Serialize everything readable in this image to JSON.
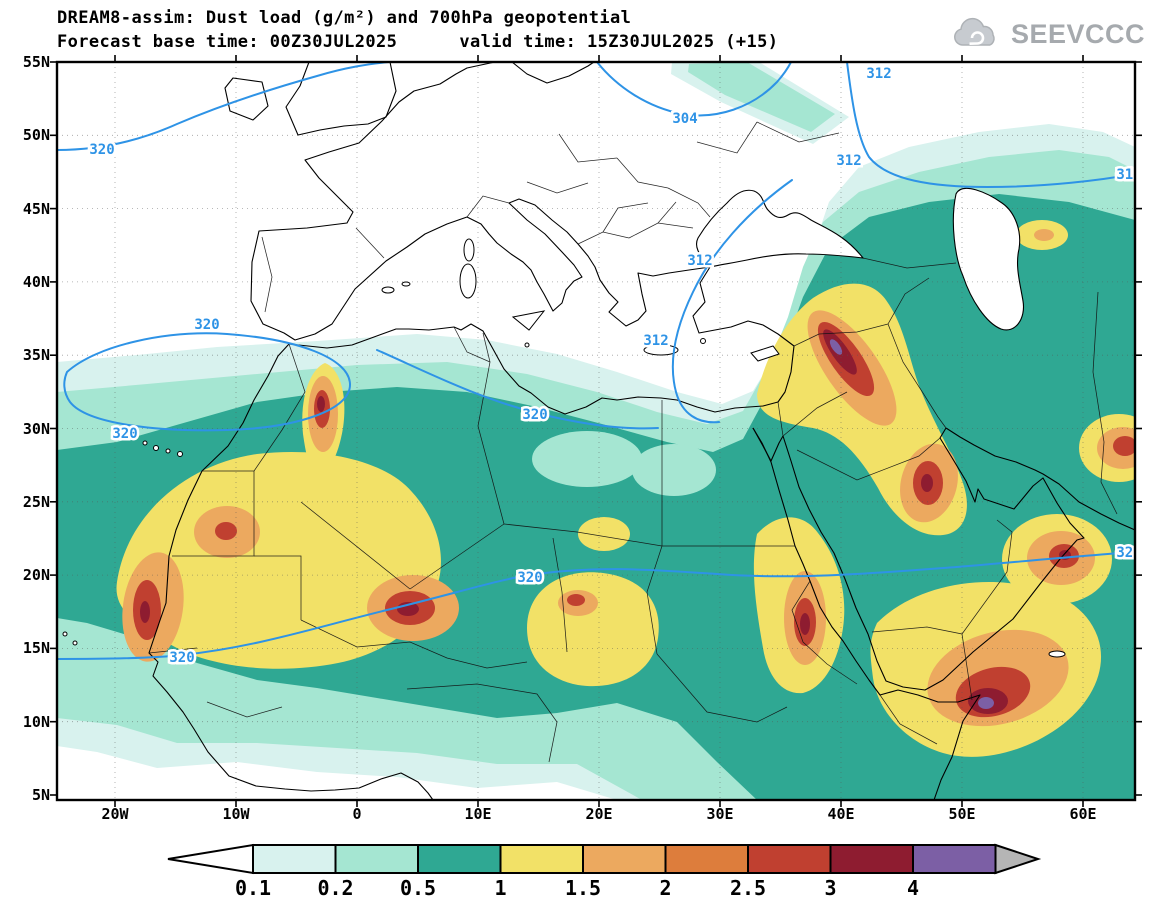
{
  "header": {
    "title_line1": "DREAM8-assim: Dust load (g/m²) and 700hPa geopotential",
    "forecast_base": "Forecast base time: 00Z30JUL2025",
    "valid_time": "valid time: 15Z30JUL2025 (+15)",
    "logo_text": "SEEVCCC"
  },
  "chart_data": {
    "type": "heatmap",
    "title": "DREAM8-assim: Dust load (g/m²) and 700hPa geopotential",
    "subtitle": "Forecast base time: 00Z30JUL2025  valid time: 15Z30JUL2025 (+15)",
    "extent": {
      "lon_min": -25,
      "lon_max": 64,
      "lat_min": 4.7,
      "lat_max": 55
    },
    "grid": "dotted, every 5 degrees",
    "y_axis": {
      "tick_labels": [
        "55N",
        "50N",
        "45N",
        "40N",
        "35N",
        "30N",
        "25N",
        "20N",
        "15N",
        "10N",
        "5N"
      ]
    },
    "x_axis": {
      "tick_labels": [
        "20W",
        "10W",
        "0",
        "10E",
        "20E",
        "30E",
        "40E",
        "50E",
        "60E"
      ]
    },
    "colorbar": {
      "units": "g/m²",
      "levels": [
        0.1,
        0.2,
        0.5,
        1,
        1.5,
        2,
        2.5,
        3,
        4
      ],
      "tick_labels": [
        "0.1",
        "0.2",
        "0.5",
        "1",
        "1.5",
        "2",
        "2.5",
        "3",
        "4"
      ],
      "segment_colors": [
        "#d8f2ee",
        "#a5e6d2",
        "#2fa893",
        "#f2e167",
        "#eca95f",
        "#dd7d3c",
        "#c04030",
        "#8e1c30",
        "#7c5fa5"
      ],
      "underflow_color": "#ffffff",
      "overflow_color": "#b5b5b5"
    },
    "geopotential": {
      "line_color": "#2e93e6",
      "labeled_values": [
        304,
        312,
        320
      ],
      "contour_labels": [
        "320",
        "304",
        "312",
        "312",
        "312",
        "312",
        "320",
        "320",
        "320",
        "320",
        "320",
        "320",
        "312"
      ]
    },
    "dust_maxima": [
      {
        "region": "Mauritania coast",
        "lon": -16,
        "lat": 18,
        "value_g_m2": ">2.5"
      },
      {
        "region": "Northern Algeria",
        "lon": -3,
        "lat": 30,
        "value_g_m2": ">2.5"
      },
      {
        "region": "Mali / Niger border",
        "lon": 0,
        "lat": 18,
        "value_g_m2": ">3"
      },
      {
        "region": "Chad",
        "lon": 18,
        "lat": 18,
        "value_g_m2": ">2.5"
      },
      {
        "region": "Sudan Red Sea coast",
        "lon": 37,
        "lat": 17,
        "value_g_m2": ">3"
      },
      {
        "region": "Iraq / Mesopotamia",
        "lon": 40,
        "lat": 34,
        "value_g_m2": ">4"
      },
      {
        "region": "Kuwait / N Persian Gulf",
        "lon": 47,
        "lat": 26,
        "value_g_m2": ">3"
      },
      {
        "region": "Southern Arabia / Yemen",
        "lon": 52,
        "lat": 11,
        "value_g_m2": ">4"
      },
      {
        "region": "UAE / Oman",
        "lon": 58,
        "lat": 21,
        "value_g_m2": ">3"
      },
      {
        "region": "SE Iran coast (map edge)",
        "lon": 63,
        "lat": 28,
        "value_g_m2": ">3"
      }
    ]
  }
}
